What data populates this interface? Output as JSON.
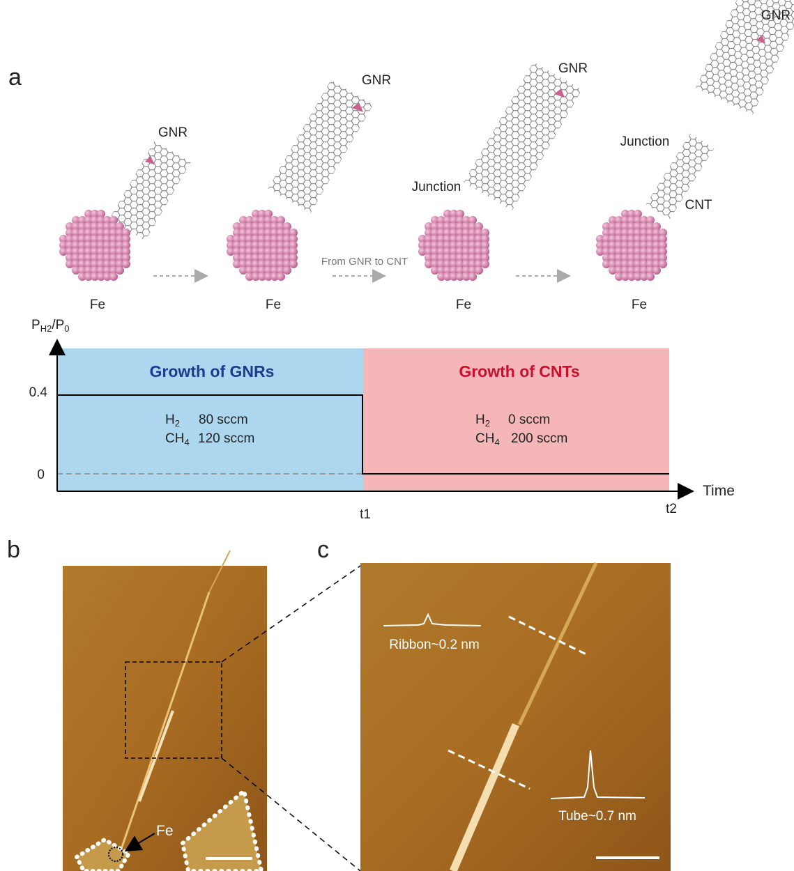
{
  "panel_a": {
    "label": "a",
    "from_to": "From GNR to CNT",
    "stages": [
      {
        "gnr": "GNR",
        "fe": "Fe"
      },
      {
        "gnr": "GNR",
        "fe": "Fe"
      },
      {
        "gnr": "GNR",
        "junction": "Junction",
        "fe": "Fe"
      },
      {
        "gnr": "GNR",
        "junction": "Junction",
        "cnt": "CNT",
        "fe": "Fe"
      }
    ],
    "timeline": {
      "y_label": [
        "P",
        "H2",
        "/P",
        "0"
      ],
      "y_high": "0.4",
      "y_low": "0",
      "x_label": "Time",
      "t1": "t1",
      "t2": "t2",
      "regions": [
        {
          "title": "Growth of GNRs",
          "h2": [
            "H",
            "2",
            "80 sccm"
          ],
          "ch4": [
            "CH",
            "4",
            "120 sccm"
          ]
        },
        {
          "title": "Growth of CNTs",
          "h2": [
            "H",
            "2",
            "0 sccm"
          ],
          "ch4": [
            "CH",
            "4",
            "200 sccm"
          ]
        }
      ]
    }
  },
  "panel_b": {
    "label": "b",
    "fe": "Fe"
  },
  "panel_c": {
    "label": "c",
    "ribbon": "Ribbon~0.2 nm",
    "tube": "Tube~0.7 nm"
  }
}
